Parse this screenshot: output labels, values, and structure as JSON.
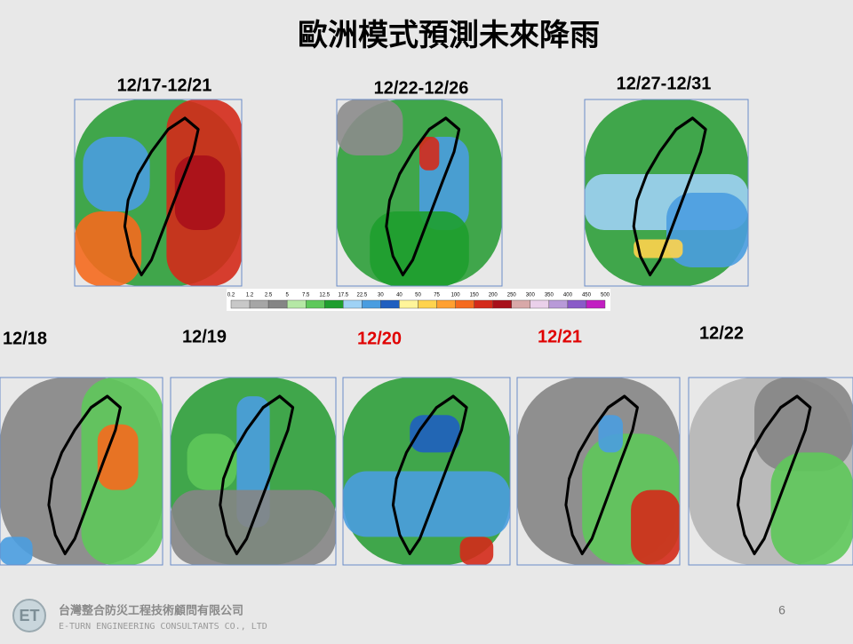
{
  "header": {
    "title": "歐洲模式預測未來降雨"
  },
  "periods": [
    "12/17-12/21",
    "12/22-12/26",
    "12/27-12/31"
  ],
  "colorbar": {
    "ticks": [
      0.2,
      1.2,
      2.5,
      5,
      7.5,
      12.5,
      17.5,
      22.5,
      30,
      40,
      50,
      75,
      100,
      150,
      200,
      250,
      300,
      350,
      400,
      450,
      500
    ],
    "colors": [
      "#c8c8c8",
      "#a6a6a6",
      "#858585",
      "#b5e8a5",
      "#5ec85a",
      "#1e9e2e",
      "#9fd2f5",
      "#4a9de0",
      "#1f5fc0",
      "#fff59a",
      "#ffd34d",
      "#ffa030",
      "#f56a1e",
      "#d42a1a",
      "#a8101a",
      "#d8a8a8",
      "#ead0ea",
      "#b89ad8",
      "#8a5ac8",
      "#c21ec2"
    ]
  },
  "days": [
    {
      "label": "12/18",
      "color": "#000000"
    },
    {
      "label": "12/19",
      "color": "#000000"
    },
    {
      "label": "12/20",
      "color": "#e00000"
    },
    {
      "label": "12/21",
      "color": "#e00000"
    },
    {
      "label": "12/22",
      "color": "#000000"
    }
  ],
  "footer": {
    "company": "台灣整合防災工程技術顧問有限公司",
    "company_en": "E-TURN ENGINEERING CONSULTANTS CO., LTD",
    "page": "6"
  }
}
